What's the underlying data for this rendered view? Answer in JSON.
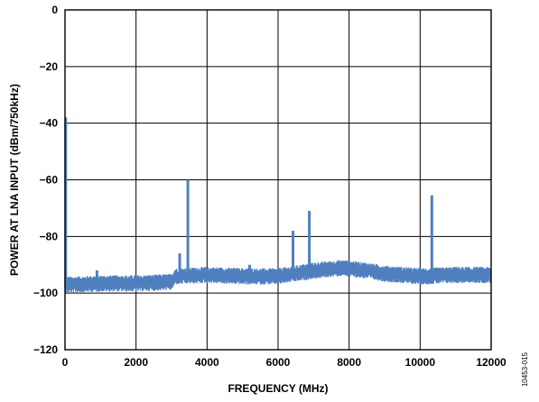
{
  "chart_data": {
    "type": "line",
    "title": "",
    "xlabel": "FREQUENCY (MHz)",
    "ylabel": "POWER AT LNA INPUT (dBm/750kHz)",
    "xlim": [
      0,
      12000
    ],
    "ylim": [
      -120,
      0
    ],
    "x_ticks": [
      0,
      2000,
      4000,
      6000,
      8000,
      10000,
      12000
    ],
    "x_tick_labels": [
      "0",
      "2000",
      "4000",
      "6000",
      "8000",
      "10000",
      "12000"
    ],
    "y_ticks": [
      0,
      -20,
      -40,
      -60,
      -80,
      -100,
      -120
    ],
    "y_tick_labels": [
      "0",
      "−20",
      "−40",
      "−60",
      "−80",
      "−100",
      "−120"
    ],
    "grid": true,
    "series_color": "#4f7fbf",
    "noise_floor": [
      {
        "x": 0,
        "y": -97
      },
      {
        "x": 1000,
        "y": -96.5
      },
      {
        "x": 2000,
        "y": -96.5
      },
      {
        "x": 3000,
        "y": -96
      },
      {
        "x": 3100,
        "y": -94
      },
      {
        "x": 4000,
        "y": -93.5
      },
      {
        "x": 5000,
        "y": -94
      },
      {
        "x": 6000,
        "y": -94
      },
      {
        "x": 7000,
        "y": -92
      },
      {
        "x": 7800,
        "y": -91
      },
      {
        "x": 8500,
        "y": -92
      },
      {
        "x": 9000,
        "y": -93
      },
      {
        "x": 10000,
        "y": -94
      },
      {
        "x": 11000,
        "y": -93.5
      },
      {
        "x": 12000,
        "y": -93.5
      }
    ],
    "spurs": [
      {
        "x": 20,
        "y": -38
      },
      {
        "x": 900,
        "y": -92
      },
      {
        "x": 3230,
        "y": -86
      },
      {
        "x": 3460,
        "y": -60
      },
      {
        "x": 5200,
        "y": -90
      },
      {
        "x": 6420,
        "y": -78
      },
      {
        "x": 6880,
        "y": -71
      },
      {
        "x": 9450,
        "y": -91
      },
      {
        "x": 10330,
        "y": -65.5
      }
    ]
  },
  "figure_id": "10453-015"
}
